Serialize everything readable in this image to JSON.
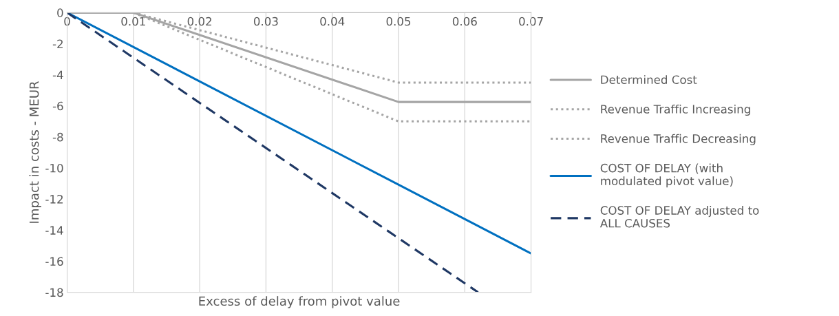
{
  "chart_data": {
    "type": "line",
    "xlabel": "Excess of delay from pivot value",
    "ylabel": "Impact in costs - MEUR",
    "xlim": [
      0,
      0.07
    ],
    "xticks": [
      0,
      0.01,
      0.02,
      0.03,
      0.04,
      0.05,
      0.06,
      0.07
    ],
    "ylim": [
      -18,
      0
    ],
    "yticks": [
      -18,
      -16,
      -14,
      -12,
      -10,
      -8,
      -6,
      -4,
      -2,
      0
    ],
    "grid": "x",
    "legend": "right",
    "marker": "none",
    "series": [
      {
        "name": "Determined Cost",
        "color": "#a5a5a5",
        "line_style": "solid",
        "x": [
          0,
          0.01,
          0.05,
          0.07
        ],
        "values": [
          0,
          0,
          -5.75,
          -5.75
        ]
      },
      {
        "name": "Revenue Traffic Increasing",
        "color": "#a5a5a5",
        "line_style": "dotted",
        "x": [
          0.01,
          0.05,
          0.07
        ],
        "values": [
          0,
          -4.5,
          -4.5
        ]
      },
      {
        "name": "Revenue Traffic Decreasing",
        "color": "#a5a5a5",
        "line_style": "dotted",
        "x": [
          0.01,
          0.05,
          0.07
        ],
        "values": [
          0,
          -7.0,
          -7.0
        ]
      },
      {
        "name": "COST OF DELAY (with modulated pivot value)",
        "color": "#0070c0",
        "line_style": "solid",
        "x": [
          0,
          0.07
        ],
        "values": [
          0,
          -15.5
        ]
      },
      {
        "name": "COST OF DELAY adjusted to ALL CAUSES",
        "color": "#1f3864",
        "line_style": "dashed",
        "x": [
          0,
          0.062
        ],
        "values": [
          0,
          -18
        ]
      }
    ]
  }
}
